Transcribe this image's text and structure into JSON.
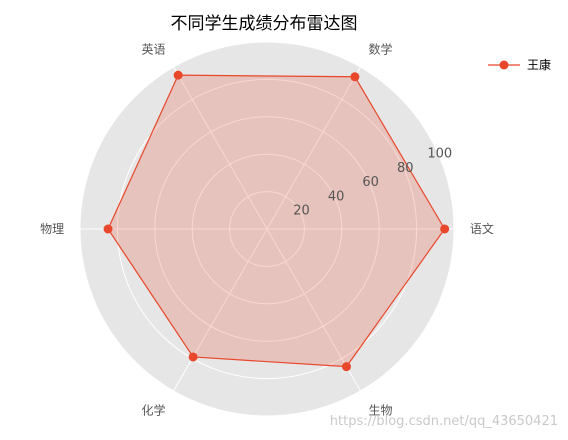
{
  "chart_data": {
    "type": "radar",
    "title": "不同学生成绩分布雷达图",
    "categories": [
      "语文",
      "数学",
      "英语",
      "物理",
      "化学",
      "生物"
    ],
    "rlim": [
      0,
      100
    ],
    "rticks": [
      20,
      40,
      60,
      80,
      100
    ],
    "grid": true,
    "legend_position": "top-right",
    "series": [
      {
        "name": "王康",
        "values": [
          95,
          94,
          95,
          85,
          79,
          85
        ],
        "color": "#E8472B"
      }
    ]
  },
  "watermark": "https://blog.csdn.net/qq_43650421"
}
